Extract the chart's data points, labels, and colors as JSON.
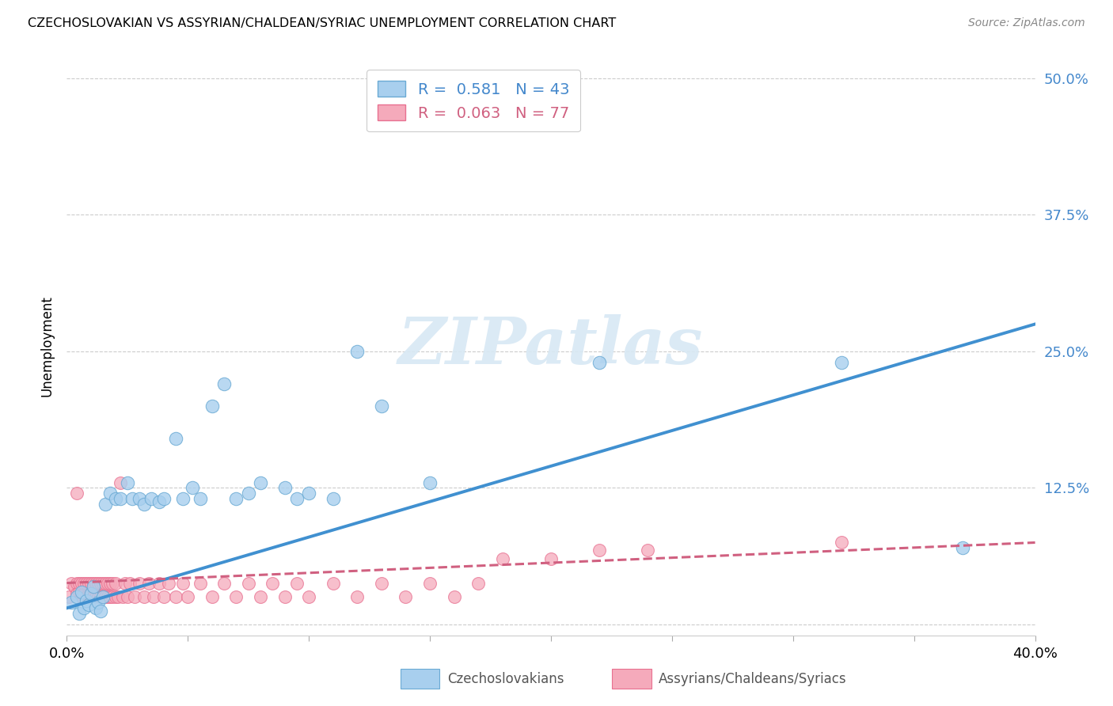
{
  "title": "CZECHOSLOVAKIAN VS ASSYRIAN/CHALDEAN/SYRIAC UNEMPLOYMENT CORRELATION CHART",
  "source": "Source: ZipAtlas.com",
  "ylabel": "Unemployment",
  "xlim": [
    0.0,
    0.4
  ],
  "ylim": [
    -0.01,
    0.52
  ],
  "yticks": [
    0.0,
    0.125,
    0.25,
    0.375,
    0.5
  ],
  "ytick_labels": [
    "",
    "12.5%",
    "25.0%",
    "37.5%",
    "50.0%"
  ],
  "blue_label": "Czechoslovakians",
  "pink_label": "Assyrians/Chaldeans/Syriacs",
  "blue_R": "0.581",
  "blue_N": "43",
  "pink_R": "0.063",
  "pink_N": "77",
  "blue_color": "#A8CFEE",
  "pink_color": "#F5AABB",
  "blue_edge_color": "#6AAAD4",
  "pink_edge_color": "#E87090",
  "blue_line_color": "#4090D0",
  "pink_line_color": "#D06080",
  "label_color": "#4488CC",
  "watermark": "ZIPatlas",
  "background_color": "#ffffff",
  "blue_line_x0": 0.0,
  "blue_line_y0": 0.015,
  "blue_line_x1": 0.4,
  "blue_line_y1": 0.275,
  "pink_line_x0": 0.0,
  "pink_line_y0": 0.038,
  "pink_line_x1": 0.4,
  "pink_line_y1": 0.075,
  "blue_scatter_x": [
    0.002,
    0.004,
    0.005,
    0.006,
    0.007,
    0.008,
    0.009,
    0.01,
    0.011,
    0.012,
    0.013,
    0.014,
    0.015,
    0.016,
    0.018,
    0.02,
    0.022,
    0.025,
    0.027,
    0.03,
    0.032,
    0.035,
    0.038,
    0.04,
    0.045,
    0.048,
    0.052,
    0.055,
    0.06,
    0.065,
    0.07,
    0.075,
    0.08,
    0.09,
    0.095,
    0.1,
    0.11,
    0.12,
    0.13,
    0.15,
    0.22,
    0.32,
    0.37
  ],
  "blue_scatter_y": [
    0.02,
    0.025,
    0.01,
    0.03,
    0.015,
    0.022,
    0.018,
    0.028,
    0.035,
    0.015,
    0.02,
    0.012,
    0.025,
    0.11,
    0.12,
    0.115,
    0.115,
    0.13,
    0.115,
    0.115,
    0.11,
    0.115,
    0.112,
    0.115,
    0.17,
    0.115,
    0.125,
    0.115,
    0.2,
    0.22,
    0.115,
    0.12,
    0.13,
    0.125,
    0.115,
    0.12,
    0.115,
    0.25,
    0.2,
    0.13,
    0.24,
    0.24,
    0.07
  ],
  "pink_scatter_x": [
    0.001,
    0.002,
    0.003,
    0.004,
    0.004,
    0.005,
    0.005,
    0.006,
    0.006,
    0.007,
    0.007,
    0.008,
    0.008,
    0.009,
    0.009,
    0.01,
    0.01,
    0.011,
    0.011,
    0.012,
    0.012,
    0.013,
    0.013,
    0.014,
    0.014,
    0.015,
    0.015,
    0.016,
    0.016,
    0.017,
    0.017,
    0.018,
    0.018,
    0.019,
    0.019,
    0.02,
    0.02,
    0.021,
    0.022,
    0.023,
    0.024,
    0.025,
    0.026,
    0.028,
    0.03,
    0.032,
    0.034,
    0.036,
    0.038,
    0.04,
    0.042,
    0.045,
    0.048,
    0.05,
    0.055,
    0.06,
    0.065,
    0.07,
    0.075,
    0.08,
    0.085,
    0.09,
    0.095,
    0.1,
    0.11,
    0.12,
    0.13,
    0.14,
    0.15,
    0.16,
    0.17,
    0.18,
    0.2,
    0.22,
    0.24,
    0.32,
    0.004
  ],
  "pink_scatter_y": [
    0.025,
    0.038,
    0.035,
    0.038,
    0.028,
    0.03,
    0.038,
    0.025,
    0.038,
    0.028,
    0.038,
    0.025,
    0.038,
    0.025,
    0.038,
    0.025,
    0.038,
    0.025,
    0.038,
    0.025,
    0.038,
    0.025,
    0.038,
    0.025,
    0.038,
    0.025,
    0.038,
    0.025,
    0.038,
    0.025,
    0.038,
    0.025,
    0.038,
    0.025,
    0.038,
    0.025,
    0.038,
    0.025,
    0.13,
    0.025,
    0.038,
    0.025,
    0.038,
    0.025,
    0.038,
    0.025,
    0.038,
    0.025,
    0.038,
    0.025,
    0.038,
    0.025,
    0.038,
    0.025,
    0.038,
    0.025,
    0.038,
    0.025,
    0.038,
    0.025,
    0.038,
    0.025,
    0.038,
    0.025,
    0.038,
    0.025,
    0.038,
    0.025,
    0.038,
    0.025,
    0.038,
    0.06,
    0.06,
    0.068,
    0.068,
    0.075,
    0.12
  ]
}
